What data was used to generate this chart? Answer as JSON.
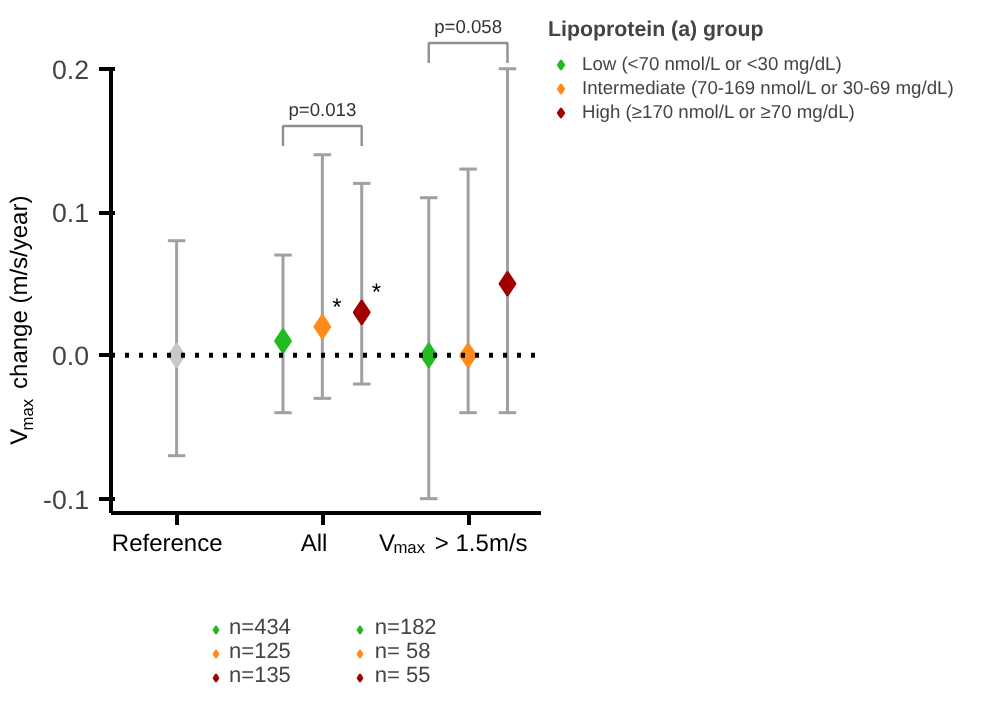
{
  "chart_data": {
    "type": "scatter",
    "ylabel": "V$_{max}$ change (m/s/year)",
    "legend_title": "Lipoprotein (a) group",
    "categories": [
      "Reference\nn=9195",
      "All\nn=694",
      "V$_{max}$ > 1.5m/s\nn=295"
    ],
    "series": [
      {
        "color": "#c8c8c8",
        "values": [
          0,
          null,
          null
        ],
        "errors": [
          [
            -0.07,
            0.08
          ],
          null,
          null
        ]
      },
      {
        "name": "Low (<70 nmol/L or <30 mg/dL)",
        "color": "#22bb22",
        "values": [
          null,
          0.01,
          0
        ],
        "errors": [
          null,
          [
            -0.04,
            0.07
          ],
          [
            -0.1,
            0.11
          ]
        ]
      },
      {
        "name": "Intermediate (70-169 nmol/L or 30-69 mg/dL)",
        "color": "#ff8c1a",
        "values": [
          null,
          0.02,
          0
        ],
        "errors": [
          null,
          [
            -0.03,
            0.14
          ],
          [
            -0.04,
            0.13
          ]
        ]
      },
      {
        "name": "High (≥170 nmol/L or ≥70 mg/dL)",
        "color": "#a00000",
        "values": [
          null,
          0.03,
          0.05
        ],
        "errors": [
          null,
          [
            -0.02,
            0.12
          ],
          [
            -0.04,
            0.2
          ]
        ]
      }
    ],
    "ylim": [
      -0.11,
      0.2
    ],
    "yticks": [
      0.2,
      0.1,
      {
        "value": 0,
        "label": "0.0"
      },
      -0.1
    ],
    "ref_lines": [
      {
        "axis": "y",
        "value": 0,
        "line_style": "dotted",
        "color": "#000000"
      }
    ],
    "marker": "diamond",
    "grid": false,
    "legend": "right",
    "annotations": [
      "p=0.013",
      "p=0.058",
      "*",
      "*",
      "n=434",
      "n=125",
      "n=135",
      "n=182",
      "n= 58",
      "n= 55"
    ]
  }
}
